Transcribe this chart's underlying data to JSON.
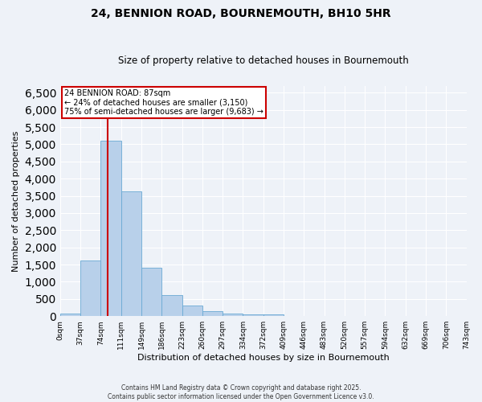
{
  "title": "24, BENNION ROAD, BOURNEMOUTH, BH10 5HR",
  "subtitle": "Size of property relative to detached houses in Bournemouth",
  "xlabel": "Distribution of detached houses by size in Bournemouth",
  "ylabel": "Number of detached properties",
  "bar_color": "#b8d0ea",
  "bar_edge_color": "#6aaad4",
  "background_color": "#eef2f8",
  "grid_color": "#ffffff",
  "vline_color": "#cc0000",
  "vline_bin": 2,
  "bin_labels": [
    "0sqm",
    "37sqm",
    "74sqm",
    "111sqm",
    "149sqm",
    "186sqm",
    "223sqm",
    "260sqm",
    "297sqm",
    "334sqm",
    "372sqm",
    "409sqm",
    "446sqm",
    "483sqm",
    "520sqm",
    "557sqm",
    "594sqm",
    "632sqm",
    "669sqm",
    "706sqm",
    "743sqm"
  ],
  "bar_heights": [
    65,
    1620,
    5100,
    3620,
    1420,
    610,
    310,
    135,
    70,
    40,
    60,
    0,
    0,
    0,
    0,
    0,
    0,
    0,
    0,
    0
  ],
  "ylim": [
    0,
    6700
  ],
  "yticks": [
    0,
    500,
    1000,
    1500,
    2000,
    2500,
    3000,
    3500,
    4000,
    4500,
    5000,
    5500,
    6000,
    6500
  ],
  "annotation_title": "24 BENNION ROAD: 87sqm",
  "annotation_line1": "← 24% of detached houses are smaller (3,150)",
  "annotation_line2": "75% of semi-detached houses are larger (9,683) →",
  "annotation_box_color": "#ffffff",
  "annotation_box_edge": "#cc0000",
  "footer_line1": "Contains HM Land Registry data © Crown copyright and database right 2025.",
  "footer_line2": "Contains public sector information licensed under the Open Government Licence v3.0."
}
